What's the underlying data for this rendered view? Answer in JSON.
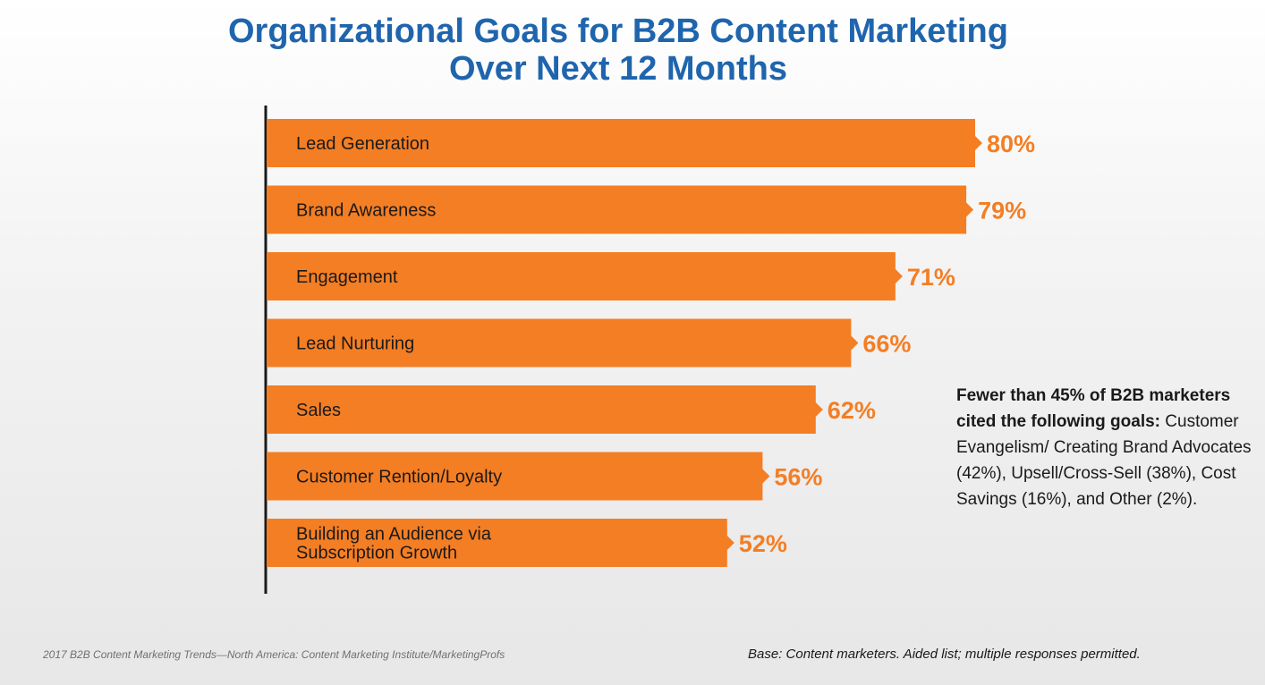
{
  "chart_data": {
    "type": "bar",
    "orientation": "horizontal",
    "title_lines": [
      "Organizational Goals for B2B Content Marketing",
      "Over Next 12 Months"
    ],
    "categories": [
      [
        "Lead Generation"
      ],
      [
        "Brand Awareness"
      ],
      [
        "Engagement"
      ],
      [
        "Lead Nurturing"
      ],
      [
        "Sales"
      ],
      [
        "Customer Rention/Loyalty"
      ],
      [
        "Building an Audience via",
        "Subscription Growth"
      ]
    ],
    "values": [
      80,
      79,
      71,
      66,
      62,
      56,
      52
    ],
    "value_labels": [
      "80%",
      "79%",
      "71%",
      "66%",
      "62%",
      "56%",
      "52%"
    ],
    "value_unit": "%",
    "bar_color": "#f47e24",
    "label_color": "#f47e24",
    "axis_color": "#1a1a1a",
    "grid": false,
    "legend": "none"
  },
  "note": {
    "bold": "Fewer than 45% of B2B marketers cited the following goals:",
    "text": " Customer Evangelism/ Creating Brand Advocates (42%), Upsell/Cross-Sell (38%), Cost Savings (16%), and Other (2%)."
  },
  "footer": {
    "source": "2017 B2B Content Marketing Trends—North America: Content Marketing Institute/MarketingProfs",
    "base": "Base: Content marketers. Aided list; multiple responses permitted."
  }
}
